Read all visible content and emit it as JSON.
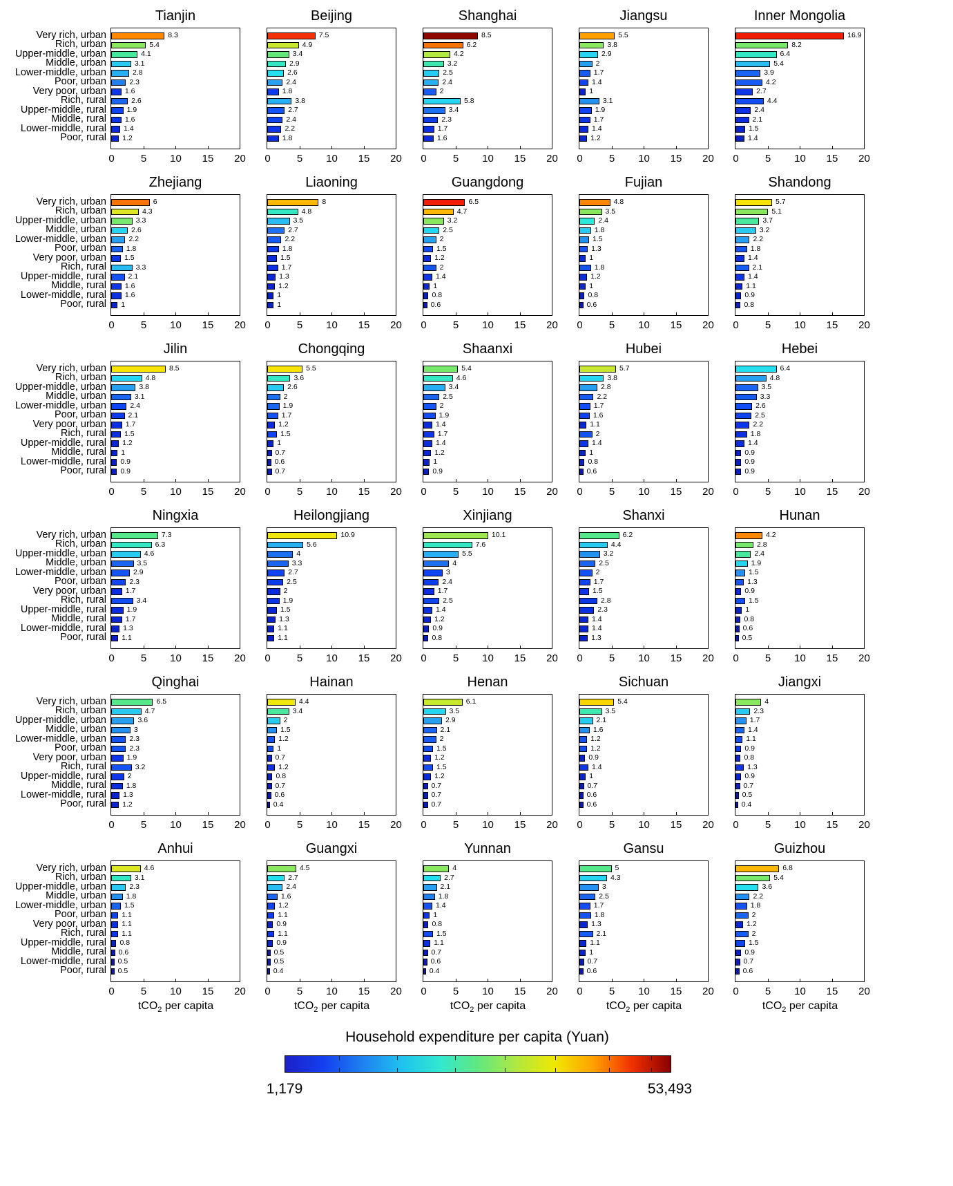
{
  "chart_data": {
    "type": "bar",
    "orientation": "horizontal",
    "categories": [
      "Very rich, urban",
      "Rich, urban",
      "Upper-middle, urban",
      "Middle, urban",
      "Lower-middle, urban",
      "Poor, urban",
      "Very poor, urban",
      "Rich, rural",
      "Upper-middle, rural",
      "Middle, rural",
      "Lower-middle, rural",
      "Poor, rural"
    ],
    "xlim": [
      0,
      20
    ],
    "xticks": [
      "0",
      "5",
      "10",
      "15",
      "20"
    ],
    "xlabel": {
      "pre": "tCO",
      "sub": "2",
      "post": " per capita"
    },
    "grid_cols": 5,
    "grid_rows": 6,
    "panels": [
      {
        "title": "Tianjin",
        "values": [
          8.3,
          5.4,
          4.1,
          3.1,
          2.8,
          2.3,
          1.6,
          2.6,
          1.9,
          1.6,
          1.4,
          1.2
        ],
        "colors": [
          "#FF8800",
          "#8AE85E",
          "#48E89C",
          "#28CAF2",
          "#28AEF2",
          "#2080F0",
          "#0C36E8",
          "#1A66F2",
          "#0F44F2",
          "#0C36E8",
          "#0A2CDC",
          "#0928D4"
        ]
      },
      {
        "title": "Beijing",
        "values": [
          7.5,
          4.9,
          3.4,
          2.9,
          2.6,
          2.4,
          1.8,
          3.8,
          2.7,
          2.4,
          2.2,
          1.8
        ],
        "colors": [
          "#F43008",
          "#C8E830",
          "#66E878",
          "#34E8C4",
          "#24E0EE",
          "#28A0F2",
          "#0D3CEE",
          "#28AEF2",
          "#1454F4",
          "#0F44F2",
          "#0C36E8",
          "#0B30E2"
        ]
      },
      {
        "title": "Shanghai",
        "values": [
          8.5,
          6.2,
          4.2,
          3.2,
          2.5,
          2.4,
          2,
          5.8,
          3.4,
          2.3,
          1.7,
          1.6
        ],
        "colors": [
          "#8E0800",
          "#F87400",
          "#B2E840",
          "#3CE8B0",
          "#28CAF2",
          "#28AEF2",
          "#175CF4",
          "#26D6F0",
          "#1D70F0",
          "#0D3CEE",
          "#0B30E2",
          "#0A2CDC"
        ]
      },
      {
        "title": "Jiangsu",
        "values": [
          5.5,
          3.8,
          2.9,
          2,
          1.7,
          1.4,
          1,
          3.1,
          1.9,
          1.7,
          1.4,
          1.2
        ],
        "colors": [
          "#FFA000",
          "#8AE85E",
          "#26D6F0",
          "#28A0F2",
          "#175CF4",
          "#0F44F2",
          "#0924CC",
          "#2490F2",
          "#0F44F2",
          "#0C36E8",
          "#0A2CDC",
          "#0928D4"
        ]
      },
      {
        "title": "Inner Mongolia",
        "values": [
          16.9,
          8.2,
          6.4,
          5.4,
          3.9,
          4.2,
          2.7,
          4.4,
          2.4,
          2.1,
          1.5,
          1.4
        ],
        "colors": [
          "#F01C04",
          "#78E86C",
          "#34E8C4",
          "#28BCF2",
          "#1A66F2",
          "#175CF4",
          "#0C36E8",
          "#114CF4",
          "#0B30E2",
          "#0A2CDC",
          "#0924CC",
          "#0820C4"
        ]
      },
      {
        "title": "Zhejiang",
        "values": [
          6,
          4.3,
          3.3,
          2.6,
          2.2,
          1.8,
          1.5,
          3.3,
          2.1,
          1.6,
          1.6,
          1
        ],
        "colors": [
          "#F87400",
          "#DCE824",
          "#78E86C",
          "#26D6F0",
          "#28A0F2",
          "#1A66F2",
          "#0C36E8",
          "#28BCF2",
          "#1454F4",
          "#0C36E8",
          "#0B30E2",
          "#0924CC"
        ]
      },
      {
        "title": "Liaoning",
        "values": [
          8,
          4.8,
          3.5,
          2.7,
          2.2,
          1.8,
          1.5,
          1.7,
          1.3,
          1.2,
          1,
          1
        ],
        "colors": [
          "#FFB800",
          "#34E8C4",
          "#28BCF2",
          "#1D70F0",
          "#175CF4",
          "#0C36E8",
          "#0A2CDC",
          "#0B30E2",
          "#0928D4",
          "#0924CC",
          "#0820C4",
          "#0820C4"
        ]
      },
      {
        "title": "Guangdong",
        "values": [
          6.5,
          4.7,
          3.2,
          2.5,
          2,
          1.5,
          1.2,
          2,
          1.4,
          1,
          0.8,
          0.6
        ],
        "colors": [
          "#F01C04",
          "#FFB800",
          "#8AE85E",
          "#26D6F0",
          "#28A0F2",
          "#114CF4",
          "#0A2CDC",
          "#1454F4",
          "#0C36E8",
          "#0928D4",
          "#0820C4",
          "#0819B4"
        ]
      },
      {
        "title": "Fujian",
        "values": [
          4.8,
          3.5,
          2.4,
          1.8,
          1.5,
          1.3,
          1,
          1.8,
          1.2,
          1,
          0.8,
          0.6
        ],
        "colors": [
          "#FF8800",
          "#8AE85E",
          "#2CE8D8",
          "#28CAF2",
          "#2490F2",
          "#1454F4",
          "#0A2CDC",
          "#1454F4",
          "#0B30E2",
          "#0928D4",
          "#0820C4",
          "#0819B4"
        ]
      },
      {
        "title": "Shandong",
        "values": [
          5.7,
          5.1,
          3.7,
          3.2,
          2.2,
          1.8,
          1.4,
          2.1,
          1.4,
          1.1,
          0.9,
          0.8
        ],
        "colors": [
          "#F8E400",
          "#8AE85E",
          "#48E89C",
          "#28CAF2",
          "#28A0F2",
          "#1454F4",
          "#0B30E2",
          "#175CF4",
          "#0C36E8",
          "#0928D4",
          "#0924CC",
          "#0820C4"
        ]
      },
      {
        "title": "Jilin",
        "values": [
          8.5,
          4.8,
          3.8,
          3.1,
          2.4,
          2.1,
          1.7,
          1.5,
          1.2,
          1,
          0.9,
          0.9
        ],
        "colors": [
          "#F8E400",
          "#26D6F0",
          "#28A0F2",
          "#1A66F2",
          "#0F44F2",
          "#0D3CEE",
          "#0B30E2",
          "#0B30E2",
          "#0928D4",
          "#0924CC",
          "#0820C4",
          "#0820C4"
        ]
      },
      {
        "title": "Chongqing",
        "values": [
          5.5,
          3.6,
          2.6,
          2,
          1.9,
          1.7,
          1.2,
          1.5,
          1,
          0.7,
          0.6,
          0.7
        ],
        "colors": [
          "#F8E400",
          "#34E8C4",
          "#28CAF2",
          "#1D70F0",
          "#1A66F2",
          "#1454F4",
          "#0A2CDC",
          "#0F44F2",
          "#0924CC",
          "#081CBC",
          "#0819B4",
          "#081CBC"
        ]
      },
      {
        "title": "Shaanxi",
        "values": [
          5.4,
          4.6,
          3.4,
          2.5,
          2,
          1.9,
          1.4,
          1.7,
          1.4,
          1.2,
          1,
          0.9
        ],
        "colors": [
          "#78E86C",
          "#34E8C4",
          "#28AEF2",
          "#1A66F2",
          "#1454F4",
          "#114CF4",
          "#0A2CDC",
          "#0C36E8",
          "#0A2CDC",
          "#0928D4",
          "#0924CC",
          "#0820C4"
        ]
      },
      {
        "title": "Hubei",
        "values": [
          5.7,
          3.8,
          2.8,
          2.2,
          1.7,
          1.6,
          1.1,
          2,
          1.4,
          1,
          0.8,
          0.6
        ],
        "colors": [
          "#C8E830",
          "#26D6F0",
          "#28A0F2",
          "#175CF4",
          "#114CF4",
          "#0F44F2",
          "#0928D4",
          "#1454F4",
          "#0C36E8",
          "#0924CC",
          "#0820C4",
          "#0819B4"
        ]
      },
      {
        "title": "Hebei",
        "values": [
          6.4,
          4.8,
          3.5,
          3.3,
          2.6,
          2.5,
          2.2,
          1.8,
          1.4,
          0.9,
          0.9,
          0.9
        ],
        "colors": [
          "#24E0EE",
          "#28A0F2",
          "#1A66F2",
          "#175CF4",
          "#114CF4",
          "#0F44F2",
          "#0C36E8",
          "#0B30E2",
          "#0A2CDC",
          "#0820C4",
          "#0820C4",
          "#0820C4"
        ]
      },
      {
        "title": "Ningxia",
        "values": [
          7.3,
          6.3,
          4.6,
          3.5,
          2.9,
          2.3,
          1.7,
          3.4,
          1.9,
          1.7,
          1.3,
          1.1
        ],
        "colors": [
          "#55E888",
          "#34E8C4",
          "#28CAF2",
          "#1A66F2",
          "#1454F4",
          "#0F44F2",
          "#0A2CDC",
          "#114CF4",
          "#0A2CDC",
          "#0928D4",
          "#0924CC",
          "#0820C4"
        ]
      },
      {
        "title": "Heilongjiang",
        "values": [
          10.9,
          5.6,
          4,
          3.3,
          2.7,
          2.5,
          2,
          1.9,
          1.5,
          1.3,
          1.1,
          1.1
        ],
        "colors": [
          "#F0E80C",
          "#28AEF2",
          "#1D70F0",
          "#1A66F2",
          "#0F44F2",
          "#0D3CEE",
          "#0A2CDC",
          "#0C36E8",
          "#0928D4",
          "#0924CC",
          "#0820C4",
          "#0820C4"
        ]
      },
      {
        "title": "Xinjiang",
        "values": [
          10.1,
          7.6,
          5.5,
          4,
          3,
          2.4,
          1.7,
          2.5,
          1.4,
          1.2,
          0.9,
          0.8
        ],
        "colors": [
          "#9CE850",
          "#34E8C4",
          "#28AEF2",
          "#1D70F0",
          "#0F44F2",
          "#0D3CEE",
          "#0A2CDC",
          "#0F44F2",
          "#0B30E2",
          "#0928D4",
          "#0820C4",
          "#081CBC"
        ]
      },
      {
        "title": "Shanxi",
        "values": [
          6.2,
          4.4,
          3.2,
          2.5,
          2,
          1.7,
          1.5,
          2.8,
          2.3,
          1.4,
          1.4,
          1.3
        ],
        "colors": [
          "#55E888",
          "#28CAF2",
          "#2490F2",
          "#1A66F2",
          "#1454F4",
          "#0F44F2",
          "#0C36E8",
          "#0C36E8",
          "#0B30E2",
          "#0928D4",
          "#0928D4",
          "#0924CC"
        ]
      },
      {
        "title": "Hunan",
        "values": [
          4.2,
          2.8,
          2.4,
          1.9,
          1.5,
          1.3,
          0.9,
          1.5,
          1,
          0.8,
          0.6,
          0.5
        ],
        "colors": [
          "#FF8800",
          "#78E86C",
          "#48E89C",
          "#26D6F0",
          "#2490F2",
          "#1454F4",
          "#0928D4",
          "#114CF4",
          "#0924CC",
          "#0820C4",
          "#0819B4",
          "#0819B4"
        ]
      },
      {
        "title": "Qinghai",
        "values": [
          6.5,
          4.7,
          3.6,
          3,
          2.3,
          2.3,
          1.9,
          3.2,
          2,
          1.8,
          1.3,
          1.2
        ],
        "colors": [
          "#55E888",
          "#28CAF2",
          "#28A0F2",
          "#2490F2",
          "#1454F4",
          "#1454F4",
          "#0C36E8",
          "#1454F4",
          "#0C36E8",
          "#0B30E2",
          "#0924CC",
          "#0924CC"
        ]
      },
      {
        "title": "Hainan",
        "values": [
          4.4,
          3.4,
          2,
          1.5,
          1.2,
          1,
          0.7,
          1.2,
          0.8,
          0.7,
          0.6,
          0.4
        ],
        "colors": [
          "#F0E80C",
          "#48E89C",
          "#28CAF2",
          "#2490F2",
          "#1454F4",
          "#114CF4",
          "#0924CC",
          "#0B30E2",
          "#0820C4",
          "#081CBC",
          "#0819B4",
          "#0816A8"
        ]
      },
      {
        "title": "Henan",
        "values": [
          6.1,
          3.5,
          2.9,
          2.1,
          2,
          1.5,
          1.2,
          1.5,
          1.2,
          0.7,
          0.7,
          0.7
        ],
        "colors": [
          "#C8E830",
          "#26D6F0",
          "#28A0F2",
          "#1A66F2",
          "#175CF4",
          "#114CF4",
          "#0A2CDC",
          "#114CF4",
          "#0A2CDC",
          "#081CBC",
          "#081CBC",
          "#081CBC"
        ]
      },
      {
        "title": "Sichuan",
        "values": [
          5.4,
          3.5,
          2.1,
          1.6,
          1.2,
          1.2,
          0.9,
          1.4,
          1,
          0.7,
          0.6,
          0.6
        ],
        "colors": [
          "#F8D400",
          "#3CE8B0",
          "#28CAF2",
          "#2490F2",
          "#1454F4",
          "#114CF4",
          "#0924CC",
          "#0C36E8",
          "#0924CC",
          "#081CBC",
          "#0819B4",
          "#0819B4"
        ]
      },
      {
        "title": "Jiangxi",
        "values": [
          4,
          2.3,
          1.7,
          1.4,
          1.1,
          0.9,
          0.8,
          1.3,
          0.9,
          0.7,
          0.5,
          0.4
        ],
        "colors": [
          "#8AE85E",
          "#28CAF2",
          "#2490F2",
          "#1A66F2",
          "#114CF4",
          "#0D3CEE",
          "#0928D4",
          "#0C36E8",
          "#0924CC",
          "#0820C4",
          "#0819B4",
          "#0816A8"
        ]
      },
      {
        "title": "Anhui",
        "values": [
          4.6,
          3.1,
          2.3,
          1.8,
          1.5,
          1.1,
          1.1,
          1.1,
          0.8,
          0.6,
          0.5,
          0.5
        ],
        "colors": [
          "#DCE824",
          "#34E8C4",
          "#28CAF2",
          "#2490F2",
          "#1A66F2",
          "#0F44F2",
          "#0B30E2",
          "#0C36E8",
          "#0924CC",
          "#081CBC",
          "#0819B4",
          "#0819B4"
        ]
      },
      {
        "title": "Guangxi",
        "values": [
          4.5,
          2.7,
          2.4,
          1.6,
          1.2,
          1.1,
          0.9,
          1.1,
          0.9,
          0.5,
          0.5,
          0.4
        ],
        "colors": [
          "#8AE85E",
          "#24E0EE",
          "#28BCF2",
          "#1A66F2",
          "#0F44F2",
          "#0D3CEE",
          "#0924CC",
          "#0C36E8",
          "#0924CC",
          "#0819B4",
          "#0819B4",
          "#0816A8"
        ]
      },
      {
        "title": "Yunnan",
        "values": [
          4,
          2.7,
          2.1,
          1.8,
          1.4,
          1,
          0.8,
          1.5,
          1.1,
          0.7,
          0.6,
          0.4
        ],
        "colors": [
          "#8AE85E",
          "#24E0EE",
          "#28A0F2",
          "#2080F0",
          "#1454F4",
          "#0C36E8",
          "#0820C4",
          "#114CF4",
          "#0B30E2",
          "#081CBC",
          "#0819B4",
          "#0816A8"
        ]
      },
      {
        "title": "Gansu",
        "values": [
          5,
          4.3,
          3,
          2.5,
          1.7,
          1.8,
          1.3,
          2.1,
          1.1,
          1,
          0.7,
          0.6
        ],
        "colors": [
          "#55E888",
          "#26D6F0",
          "#2490F2",
          "#1A66F2",
          "#114CF4",
          "#1454F4",
          "#0928D4",
          "#175CF4",
          "#0928D4",
          "#0924CC",
          "#0819B4",
          "#0819B4"
        ]
      },
      {
        "title": "Guizhou",
        "values": [
          6.8,
          5.4,
          3.6,
          2.2,
          1.8,
          2,
          1.2,
          2,
          1.5,
          0.9,
          0.7,
          0.6
        ],
        "colors": [
          "#FFB800",
          "#78E86C",
          "#24E0EE",
          "#2490F2",
          "#1454F4",
          "#1A66F2",
          "#0928D4",
          "#175CF4",
          "#0F44F2",
          "#0820C4",
          "#081CBC",
          "#0819B4"
        ]
      }
    ],
    "colorbar": {
      "title": "Household expenditure per capita (Yuan)",
      "min_label": "1,179",
      "max_label": "53,493",
      "gradient": [
        "#1C20C8",
        "#1440F0",
        "#1E80F0",
        "#20C0F0",
        "#30E8D0",
        "#60E880",
        "#B0E840",
        "#F0E800",
        "#FFA000",
        "#F03000",
        "#8B0000"
      ],
      "tick_positions": [
        0.14,
        0.29,
        0.44,
        0.57,
        0.7,
        0.84,
        0.95
      ]
    }
  }
}
